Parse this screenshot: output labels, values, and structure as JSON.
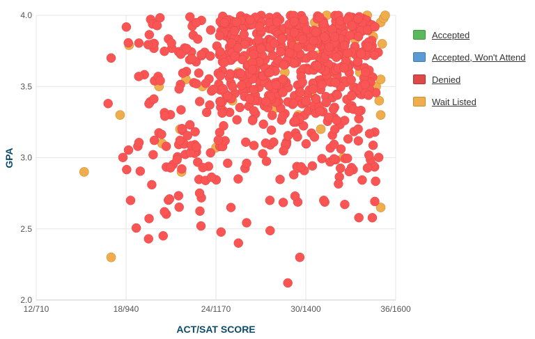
{
  "chart_data": {
    "type": "scatter",
    "xlabel": "ACT/SAT SCORE",
    "ylabel": "GPA",
    "x_ticks": [
      {
        "value": 12,
        "label": "12/710"
      },
      {
        "value": 18,
        "label": "18/940"
      },
      {
        "value": 24,
        "label": "24/1170"
      },
      {
        "value": 30,
        "label": "30/1400"
      },
      {
        "value": 36,
        "label": "36/1600"
      }
    ],
    "y_ticks": [
      {
        "value": 2.0,
        "label": "2.0"
      },
      {
        "value": 2.5,
        "label": "2.5"
      },
      {
        "value": 3.0,
        "label": "3.0"
      },
      {
        "value": 3.5,
        "label": "3.5"
      },
      {
        "value": 4.0,
        "label": "4.0"
      }
    ],
    "xlim": [
      12,
      36
    ],
    "ylim": [
      2.0,
      4.0
    ],
    "grid": true,
    "legend_position": "right",
    "series": [
      {
        "name": "Accepted",
        "color": "#5cb85c",
        "border": "#3e9a3e",
        "points": []
      },
      {
        "name": "Accepted, Won't Attend",
        "color": "#5b9bd5",
        "border": "#3d7bb5",
        "points": []
      },
      {
        "name": "Denied",
        "color": "#e04848",
        "border": "#b83232",
        "points": []
      },
      {
        "name": "Wait Listed",
        "color": "#f0ad4e",
        "border": "#d08e2e",
        "points": [
          [
            15.2,
            2.9
          ],
          [
            17.0,
            2.3
          ],
          [
            17.6,
            3.3
          ],
          [
            18.2,
            3.79
          ],
          [
            20.2,
            3.5
          ],
          [
            20.4,
            3.1
          ],
          [
            21.6,
            3.2
          ],
          [
            21.7,
            2.9
          ],
          [
            22.0,
            3.55
          ],
          [
            23.1,
            3.5
          ],
          [
            24.0,
            3.07
          ],
          [
            25.1,
            3.4
          ],
          [
            25.5,
            3.6
          ],
          [
            26.0,
            3.7
          ],
          [
            27.3,
            3.55
          ],
          [
            28.0,
            3.35
          ],
          [
            28.6,
            3.6
          ],
          [
            29.2,
            3.8
          ],
          [
            29.5,
            3.3
          ],
          [
            30.4,
            3.45
          ],
          [
            30.6,
            3.95
          ],
          [
            30.8,
            3.72
          ],
          [
            31.2,
            3.9
          ],
          [
            31.4,
            4.0
          ],
          [
            31.8,
            3.8
          ],
          [
            32.0,
            3.55
          ],
          [
            32.4,
            3.95
          ],
          [
            32.7,
            3.7
          ],
          [
            33.1,
            3.92
          ],
          [
            33.3,
            3.83
          ],
          [
            33.6,
            3.6
          ],
          [
            33.9,
            3.75
          ],
          [
            34.1,
            4.0
          ],
          [
            34.3,
            3.9
          ],
          [
            34.5,
            3.85
          ],
          [
            34.7,
            3.5
          ],
          [
            34.9,
            3.4
          ],
          [
            35.0,
            3.95
          ],
          [
            35.1,
            3.8
          ],
          [
            35.2,
            3.98
          ],
          [
            35.0,
            3.55
          ],
          [
            35.0,
            3.3
          ],
          [
            35.0,
            2.65
          ],
          [
            35.3,
            4.0
          ],
          [
            32.5,
            3.0
          ],
          [
            31.0,
            3.2
          ],
          [
            30.0,
            3.4
          ],
          [
            29.0,
            4.0
          ]
        ]
      }
    ]
  }
}
